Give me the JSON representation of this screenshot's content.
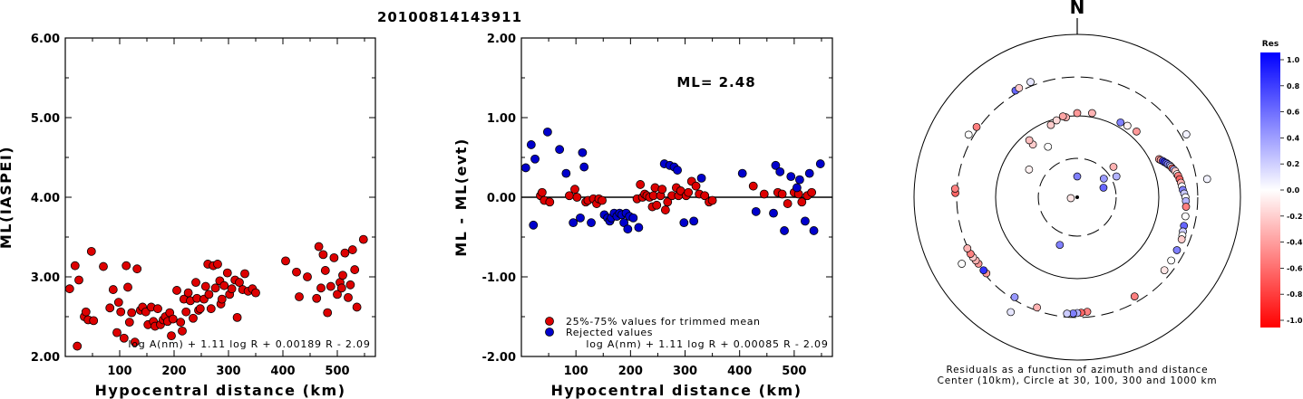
{
  "title": "20100814143911",
  "chart_data": [
    {
      "type": "scatter",
      "ylabel": "ML(IASPEI)",
      "xlabel": "Hypocentral distance (km)",
      "xlim": [
        0,
        570
      ],
      "ylim": [
        2.0,
        6.0
      ],
      "xticks": [
        "100",
        "200",
        "300",
        "400",
        "500"
      ],
      "yticks": [
        "2.00",
        "3.00",
        "4.00",
        "5.00",
        "6.00"
      ],
      "formula": "log A(nm) + 1.11 log R + 0.00189 R - 2.09",
      "point_color": "#dd0000",
      "points": [
        [
          8,
          2.85
        ],
        [
          18,
          3.14
        ],
        [
          22,
          2.13
        ],
        [
          25,
          2.96
        ],
        [
          35,
          2.5
        ],
        [
          38,
          2.56
        ],
        [
          42,
          2.46
        ],
        [
          48,
          3.32
        ],
        [
          52,
          2.45
        ],
        [
          70,
          3.13
        ],
        [
          82,
          2.61
        ],
        [
          88,
          2.84
        ],
        [
          95,
          2.3
        ],
        [
          98,
          2.68
        ],
        [
          102,
          2.56
        ],
        [
          108,
          2.23
        ],
        [
          112,
          3.14
        ],
        [
          115,
          2.87
        ],
        [
          118,
          2.43
        ],
        [
          122,
          2.55
        ],
        [
          128,
          2.18
        ],
        [
          132,
          3.1
        ],
        [
          138,
          2.58
        ],
        [
          142,
          2.62
        ],
        [
          148,
          2.56
        ],
        [
          152,
          2.4
        ],
        [
          158,
          2.62
        ],
        [
          162,
          2.44
        ],
        [
          165,
          2.38
        ],
        [
          170,
          2.6
        ],
        [
          175,
          2.4
        ],
        [
          180,
          2.46
        ],
        [
          184,
          2.5
        ],
        [
          188,
          2.44
        ],
        [
          192,
          2.55
        ],
        [
          195,
          2.26
        ],
        [
          198,
          2.47
        ],
        [
          205,
          2.83
        ],
        [
          212,
          2.43
        ],
        [
          215,
          2.32
        ],
        [
          218,
          2.72
        ],
        [
          222,
          2.56
        ],
        [
          226,
          2.8
        ],
        [
          230,
          2.7
        ],
        [
          235,
          2.48
        ],
        [
          240,
          2.93
        ],
        [
          242,
          2.73
        ],
        [
          245,
          2.58
        ],
        [
          248,
          2.6
        ],
        [
          255,
          2.72
        ],
        [
          258,
          2.88
        ],
        [
          262,
          3.16
        ],
        [
          264,
          2.78
        ],
        [
          268,
          2.6
        ],
        [
          272,
          3.14
        ],
        [
          276,
          2.86
        ],
        [
          280,
          3.16
        ],
        [
          284,
          2.95
        ],
        [
          286,
          2.66
        ],
        [
          288,
          2.72
        ],
        [
          292,
          2.89
        ],
        [
          298,
          3.05
        ],
        [
          302,
          2.78
        ],
        [
          306,
          2.85
        ],
        [
          312,
          2.96
        ],
        [
          316,
          2.49
        ],
        [
          320,
          2.93
        ],
        [
          326,
          2.84
        ],
        [
          330,
          3.04
        ],
        [
          336,
          2.82
        ],
        [
          344,
          2.85
        ],
        [
          350,
          2.8
        ],
        [
          405,
          3.2
        ],
        [
          425,
          3.06
        ],
        [
          430,
          2.75
        ],
        [
          445,
          3.0
        ],
        [
          462,
          2.73
        ],
        [
          466,
          3.38
        ],
        [
          470,
          2.86
        ],
        [
          474,
          3.28
        ],
        [
          478,
          3.08
        ],
        [
          482,
          2.55
        ],
        [
          488,
          2.88
        ],
        [
          494,
          3.24
        ],
        [
          500,
          2.78
        ],
        [
          505,
          2.93
        ],
        [
          508,
          2.86
        ],
        [
          510,
          3.02
        ],
        [
          514,
          3.3
        ],
        [
          520,
          2.74
        ],
        [
          524,
          2.9
        ],
        [
          528,
          3.34
        ],
        [
          532,
          3.09
        ],
        [
          536,
          2.62
        ],
        [
          548,
          3.47
        ]
      ]
    },
    {
      "type": "scatter",
      "ylabel": "ML - ML(evt)",
      "xlabel": "Hypocentral distance (km)",
      "xlim": [
        0,
        570
      ],
      "ylim": [
        -2.0,
        2.0
      ],
      "xticks": [
        "100",
        "200",
        "300",
        "400",
        "500"
      ],
      "yticks": [
        "-2.00",
        "-1.00",
        "0.00",
        "1.00",
        "2.00"
      ],
      "annotation": "ML= 2.48",
      "formula": "log A(nm) + 1.11 log R + 0.00085 R - 2.09",
      "legend": [
        {
          "label": "25%-75% values for trimmed mean",
          "color": "#dd0000"
        },
        {
          "label": "Rejected values",
          "color": "#0000cc"
        }
      ],
      "series": [
        {
          "name": "25%-75% values for trimmed mean",
          "color": "#dd0000",
          "points": [
            [
              35,
              0.02
            ],
            [
              38,
              0.06
            ],
            [
              42,
              -0.04
            ],
            [
              52,
              -0.06
            ],
            [
              88,
              0.02
            ],
            [
              98,
              0.1
            ],
            [
              102,
              0.0
            ],
            [
              118,
              -0.06
            ],
            [
              122,
              -0.04
            ],
            [
              132,
              -0.02
            ],
            [
              138,
              -0.08
            ],
            [
              142,
              -0.02
            ],
            [
              148,
              -0.04
            ],
            [
              212,
              -0.02
            ],
            [
              218,
              0.16
            ],
            [
              222,
              0.0
            ],
            [
              226,
              0.04
            ],
            [
              230,
              0.02
            ],
            [
              235,
              0.0
            ],
            [
              240,
              -0.12
            ],
            [
              242,
              0.02
            ],
            [
              245,
              0.12
            ],
            [
              248,
              -0.1
            ],
            [
              255,
              0.02
            ],
            [
              258,
              0.1
            ],
            [
              264,
              -0.16
            ],
            [
              268,
              -0.06
            ],
            [
              276,
              0.02
            ],
            [
              284,
              0.12
            ],
            [
              288,
              0.02
            ],
            [
              292,
              0.08
            ],
            [
              302,
              0.02
            ],
            [
              306,
              0.06
            ],
            [
              312,
              0.2
            ],
            [
              320,
              0.14
            ],
            [
              326,
              0.04
            ],
            [
              336,
              0.02
            ],
            [
              344,
              -0.06
            ],
            [
              350,
              -0.04
            ],
            [
              425,
              0.14
            ],
            [
              445,
              0.04
            ],
            [
              470,
              0.06
            ],
            [
              478,
              0.04
            ],
            [
              488,
              -0.08
            ],
            [
              500,
              0.06
            ],
            [
              508,
              0.04
            ],
            [
              514,
              -0.06
            ],
            [
              524,
              0.02
            ],
            [
              532,
              0.06
            ]
          ]
        },
        {
          "name": "Rejected values",
          "color": "#0000cc",
          "points": [
            [
              8,
              0.37
            ],
            [
              18,
              0.66
            ],
            [
              22,
              -0.35
            ],
            [
              25,
              0.48
            ],
            [
              48,
              0.82
            ],
            [
              70,
              0.6
            ],
            [
              82,
              0.3
            ],
            [
              95,
              -0.32
            ],
            [
              108,
              -0.26
            ],
            [
              112,
              0.56
            ],
            [
              115,
              0.38
            ],
            [
              128,
              -0.32
            ],
            [
              152,
              -0.22
            ],
            [
              158,
              -0.26
            ],
            [
              162,
              -0.3
            ],
            [
              165,
              -0.26
            ],
            [
              170,
              -0.2
            ],
            [
              175,
              -0.24
            ],
            [
              180,
              -0.2
            ],
            [
              184,
              -0.22
            ],
            [
              188,
              -0.32
            ],
            [
              192,
              -0.2
            ],
            [
              195,
              -0.4
            ],
            [
              198,
              -0.24
            ],
            [
              205,
              -0.26
            ],
            [
              215,
              -0.38
            ],
            [
              262,
              0.42
            ],
            [
              272,
              0.4
            ],
            [
              280,
              0.38
            ],
            [
              286,
              0.34
            ],
            [
              298,
              -0.32
            ],
            [
              316,
              -0.3
            ],
            [
              330,
              0.24
            ],
            [
              405,
              0.3
            ],
            [
              430,
              -0.18
            ],
            [
              462,
              -0.2
            ],
            [
              466,
              0.4
            ],
            [
              474,
              0.32
            ],
            [
              482,
              -0.42
            ],
            [
              494,
              0.26
            ],
            [
              505,
              0.12
            ],
            [
              510,
              0.22
            ],
            [
              520,
              -0.3
            ],
            [
              528,
              0.3
            ],
            [
              536,
              -0.42
            ],
            [
              548,
              0.42
            ]
          ]
        }
      ]
    },
    {
      "type": "polar-scatter",
      "north_label": "N",
      "caption_line1": "Residuals as a function of azimuth and distance",
      "caption_line2": "Center (10km), Circle at 30, 100, 300 and 1000 km",
      "rings_km": [
        30,
        100,
        300,
        1000
      ],
      "ring_styles": [
        "dashed",
        "solid",
        "dashed",
        "solid"
      ],
      "colorbar": {
        "title": "Res",
        "ticks": [
          "1.0",
          "0.8",
          "0.6",
          "0.4",
          "0.2",
          "0.0",
          "-0.2",
          "-0.4",
          "-0.6",
          "-0.8",
          "-1.0"
        ],
        "range": [
          -1.0,
          1.0
        ]
      },
      "stations": [
        [
          262,
          -0.1
        ],
        [
          0,
          0.5
        ],
        [
          70,
          0.6
        ],
        [
          55,
          0.4
        ],
        [
          62,
          0.3
        ],
        [
          50,
          -0.3
        ],
        [
          200,
          0.5
        ],
        [
          300,
          -0.05
        ],
        [
          330,
          0.0
        ],
        [
          320,
          -0.2
        ],
        [
          320,
          -0.25
        ],
        [
          340,
          -0.2
        ],
        [
          345,
          -0.15
        ],
        [
          352,
          -0.3
        ],
        [
          350,
          -0.35
        ],
        [
          0,
          -0.4
        ],
        [
          10,
          -0.3
        ],
        [
          30,
          0.5
        ],
        [
          35,
          -0.05
        ],
        [
          42,
          -0.4
        ],
        [
          65,
          -0.4
        ],
        [
          66,
          -0.35
        ],
        [
          67,
          0.7
        ],
        [
          68,
          0.8
        ],
        [
          69,
          0.6
        ],
        [
          70,
          0.5
        ],
        [
          71,
          0.4
        ],
        [
          72,
          0.1
        ],
        [
          73,
          -0.6
        ],
        [
          74,
          0.3
        ],
        [
          75,
          -0.2
        ],
        [
          77,
          0.0
        ],
        [
          78,
          -0.5
        ],
        [
          80,
          -0.6
        ],
        [
          82,
          -0.3
        ],
        [
          84,
          0.0
        ],
        [
          86,
          0.5
        ],
        [
          88,
          0.2
        ],
        [
          90,
          0.0
        ],
        [
          92,
          0.3
        ],
        [
          95,
          -0.5
        ],
        [
          100,
          0.0
        ],
        [
          105,
          0.6
        ],
        [
          108,
          0.2
        ],
        [
          110,
          0.0
        ],
        [
          112,
          -0.2
        ],
        [
          118,
          0.5
        ],
        [
          124,
          0.0
        ],
        [
          130,
          -0.1
        ],
        [
          150,
          -0.5
        ],
        [
          175,
          -0.5
        ],
        [
          178,
          -0.6
        ],
        [
          180,
          0.3
        ],
        [
          182,
          0.5
        ],
        [
          185,
          0.2
        ],
        [
          200,
          -0.3
        ],
        [
          212,
          0.4
        ],
        [
          230,
          -0.4
        ],
        [
          232,
          0.8
        ],
        [
          236,
          -0.4
        ],
        [
          238,
          -0.3
        ],
        [
          240,
          -0.2
        ],
        [
          242,
          -0.5
        ],
        [
          245,
          -0.3
        ],
        [
          272,
          -0.6
        ],
        [
          274,
          -0.5
        ],
        [
          305,
          -0.5
        ],
        [
          330,
          0.6
        ],
        [
          332,
          -0.2
        ],
        [
          338,
          0.1
        ],
        [
          300,
          0.0
        ],
        [
          60,
          0.05
        ],
        [
          82,
          0.05
        ],
        [
          210,
          0.1
        ],
        [
          240,
          0.0
        ]
      ]
    }
  ]
}
